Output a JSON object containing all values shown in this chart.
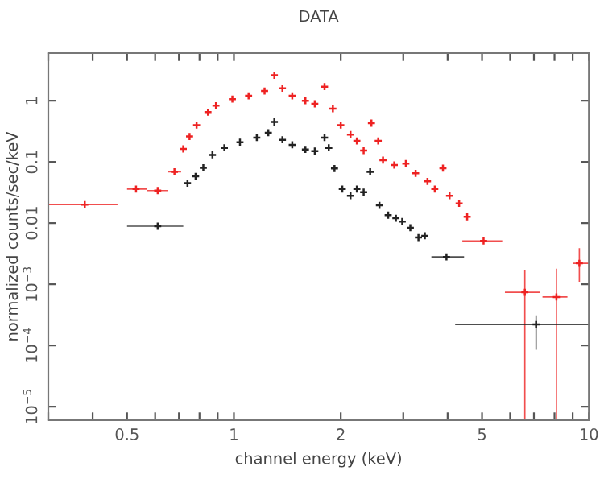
{
  "chart_data": {
    "type": "scatter",
    "title": "DATA",
    "xlabel": "channel energy (keV)",
    "ylabel": "normalized counts/sec/keV",
    "log": "xy",
    "marker": "cross",
    "grid": false,
    "legend": false,
    "xlim": [
      0.3,
      10
    ],
    "ylim": [
      6e-06,
      6
    ],
    "xticks": [
      {
        "value": 0.3,
        "label": null
      },
      {
        "value": 0.4,
        "label": null
      },
      0.5,
      {
        "value": 0.6,
        "label": null
      },
      {
        "value": 0.7,
        "label": null
      },
      {
        "value": 0.8,
        "label": null
      },
      {
        "value": 0.9,
        "label": null
      },
      1,
      2,
      {
        "value": 3,
        "label": null
      },
      {
        "value": 4,
        "label": null
      },
      5,
      {
        "value": 6,
        "label": null
      },
      {
        "value": 7,
        "label": null
      },
      {
        "value": 8,
        "label": null
      },
      {
        "value": 9,
        "label": null
      },
      10
    ],
    "yticks": [
      {
        "value": 1e-05,
        "label": "10$^{−5}$"
      },
      {
        "value": 0.0001,
        "label": "10$^{−4}$"
      },
      {
        "value": 0.001,
        "label": "10$^{−3}$"
      },
      0.01,
      0.1,
      1
    ],
    "series": [
      {
        "color": "#ee2222",
        "x": [
          0.38,
          0.53,
          0.61,
          0.68,
          0.72,
          0.75,
          0.785,
          0.845,
          0.89,
          0.99,
          1.1,
          1.22,
          1.3,
          1.37,
          1.46,
          1.59,
          1.69,
          1.8,
          1.9,
          2.0,
          2.13,
          2.22,
          2.32,
          2.44,
          2.55,
          2.63,
          2.83,
          3.05,
          3.25,
          3.51,
          3.68,
          3.88,
          4.05,
          4.31,
          4.54,
          5.05,
          6.6,
          8.1,
          9.4
        ],
        "values": [
          0.02,
          0.036,
          0.034,
          0.069,
          0.163,
          0.26,
          0.4,
          0.65,
          0.83,
          1.06,
          1.2,
          1.44,
          2.6,
          1.6,
          1.2,
          1.0,
          0.89,
          1.7,
          0.74,
          0.4,
          0.28,
          0.22,
          0.153,
          0.43,
          0.22,
          0.107,
          0.089,
          0.094,
          0.065,
          0.048,
          0.036,
          0.079,
          0.028,
          0.021,
          0.0127,
          0.0051,
          0.00074,
          0.00062,
          0.0022
        ],
        "errors": [
          null,
          null,
          null,
          null,
          null,
          null,
          null,
          null,
          null,
          null,
          null,
          null,
          null,
          null,
          null,
          null,
          null,
          null,
          null,
          null,
          null,
          null,
          null,
          null,
          null,
          null,
          null,
          null,
          null,
          null,
          null,
          null,
          null,
          null,
          null,
          null,
          [
            6e-06,
            0.0017
          ],
          [
            6e-06,
            0.0018
          ],
          [
            0.0011,
            0.0039
          ]
        ],
        "xerrors": [
          [
            0.3,
            0.47
          ],
          [
            0.5,
            0.57
          ],
          [
            0.57,
            0.65
          ],
          [
            0.65,
            0.71
          ],
          null,
          null,
          null,
          null,
          null,
          null,
          null,
          null,
          null,
          null,
          null,
          null,
          null,
          null,
          null,
          null,
          null,
          null,
          null,
          null,
          null,
          null,
          null,
          null,
          null,
          null,
          null,
          null,
          null,
          null,
          null,
          [
            4.4,
            5.7
          ],
          [
            5.8,
            7.3
          ],
          [
            7.4,
            8.7
          ],
          [
            9.0,
            10
          ]
        ]
      },
      {
        "color": "#222222",
        "x": [
          0.61,
          0.74,
          0.78,
          0.82,
          0.87,
          0.94,
          1.04,
          1.16,
          1.25,
          1.3,
          1.37,
          1.46,
          1.59,
          1.69,
          1.8,
          1.85,
          1.92,
          2.02,
          2.13,
          2.22,
          2.32,
          2.42,
          2.57,
          2.72,
          2.86,
          2.98,
          3.14,
          3.31,
          3.45,
          3.97,
          7.1
        ],
        "values": [
          0.0089,
          0.045,
          0.058,
          0.08,
          0.13,
          0.17,
          0.21,
          0.25,
          0.3,
          0.45,
          0.23,
          0.19,
          0.16,
          0.15,
          0.25,
          0.17,
          0.078,
          0.036,
          0.028,
          0.036,
          0.032,
          0.069,
          0.0195,
          0.0135,
          0.012,
          0.0106,
          0.0084,
          0.0058,
          0.0062,
          0.0028,
          0.00022
        ],
        "errors": [
          null,
          null,
          null,
          null,
          null,
          null,
          null,
          null,
          null,
          null,
          null,
          null,
          null,
          null,
          null,
          null,
          null,
          null,
          null,
          null,
          null,
          null,
          null,
          null,
          null,
          null,
          null,
          null,
          null,
          null,
          [
            8.5e-05,
            0.00031
          ]
        ],
        "xerrors": [
          [
            0.5,
            0.72
          ],
          null,
          null,
          null,
          null,
          null,
          null,
          null,
          null,
          null,
          null,
          null,
          null,
          null,
          null,
          null,
          null,
          null,
          null,
          null,
          null,
          null,
          null,
          null,
          null,
          null,
          null,
          null,
          null,
          [
            3.6,
            4.45
          ],
          [
            4.2,
            10
          ]
        ]
      }
    ]
  }
}
